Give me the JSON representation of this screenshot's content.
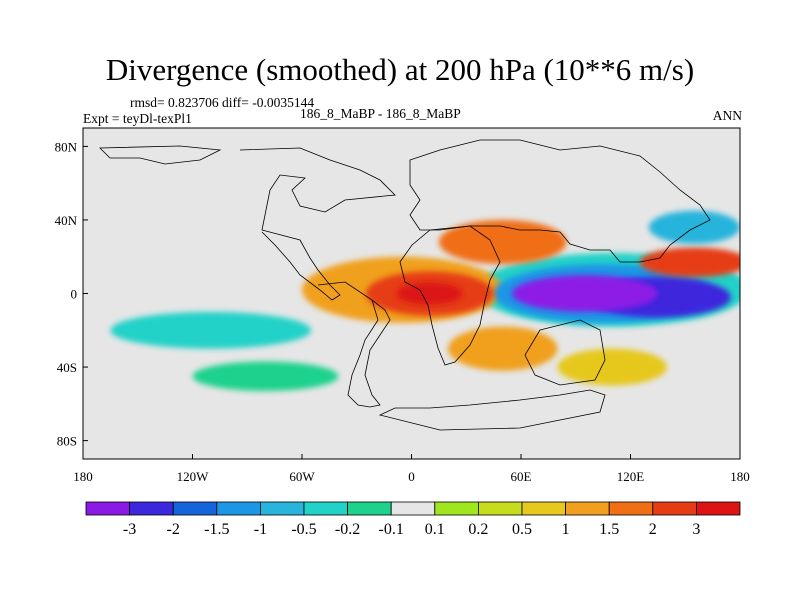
{
  "header": {
    "title": "Divergence (smoothed) at 200 hPa (10**6 m/s)",
    "stats": "rmsd= 0.823706 diff= -0.0035144",
    "experiment": "Expt = teyDl-texPl1",
    "case": "186_8_MaBP - 186_8_MaBP",
    "season": "ANN"
  },
  "chart_data": {
    "type": "heatmap",
    "title": "Divergence (smoothed) at 200 hPa (10**6 m/s)",
    "projection": "cylindrical equidistant",
    "x_range": [
      -180,
      180
    ],
    "y_range": [
      -90,
      90
    ],
    "x_ticks": [
      {
        "value": -180,
        "label": "180"
      },
      {
        "value": -120,
        "label": "120W"
      },
      {
        "value": -60,
        "label": "60W"
      },
      {
        "value": 0,
        "label": "0"
      },
      {
        "value": 60,
        "label": "60E"
      },
      {
        "value": 120,
        "label": "120E"
      },
      {
        "value": 180,
        "label": "180"
      }
    ],
    "y_ticks": [
      {
        "value": 80,
        "label": "80N"
      },
      {
        "value": 40,
        "label": "40N"
      },
      {
        "value": 0,
        "label": "0"
      },
      {
        "value": -40,
        "label": "40S"
      },
      {
        "value": -80,
        "label": "80S"
      }
    ],
    "colorbar": {
      "colors": [
        "#8c1ae6",
        "#3c28dc",
        "#1464dc",
        "#1e96e6",
        "#28b4dc",
        "#20d2c8",
        "#1ed28c",
        "#e6e6e6",
        "#a0e61e",
        "#c8dc1e",
        "#e6c81e",
        "#f0a01e",
        "#f06e14",
        "#e63c14",
        "#dc1414"
      ],
      "labels": [
        "-3",
        "-2",
        "-1.5",
        "-1",
        "-0.5",
        "-0.2",
        "-0.1",
        "0.1",
        "0.2",
        "0.5",
        "1",
        "1.5",
        "2",
        "3"
      ]
    },
    "features": [
      {
        "name": "equatorial-convergence-60E-130E",
        "lon": 95,
        "lat": 0,
        "rx": 40,
        "ry": 10,
        "level": 0
      },
      {
        "name": "convergence-east-pacific",
        "lon": 135,
        "lat": -2,
        "rx": 40,
        "ry": 11,
        "level": 1
      },
      {
        "name": "convergence-eq-belt",
        "lon": 105,
        "lat": 0,
        "rx": 60,
        "ry": 16,
        "level": 3
      },
      {
        "name": "convergence-outer",
        "lon": 110,
        "lat": 2,
        "rx": 75,
        "ry": 20,
        "level": 5
      },
      {
        "name": "convergence-40N-160E",
        "lon": 155,
        "lat": 36,
        "rx": 25,
        "ry": 9,
        "level": 4
      },
      {
        "name": "divergence-africa-core",
        "lon": 10,
        "lat": 0,
        "rx": 18,
        "ry": 6,
        "level": 14
      },
      {
        "name": "divergence-africa",
        "lon": 10,
        "lat": 0,
        "rx": 35,
        "ry": 12,
        "level": 13
      },
      {
        "name": "divergence-atlantic",
        "lon": -5,
        "lat": 2,
        "rx": 55,
        "ry": 18,
        "level": 11
      },
      {
        "name": "divergence-asia-25N",
        "lon": 50,
        "lat": 28,
        "rx": 35,
        "ry": 12,
        "level": 12
      },
      {
        "name": "divergence-east-pacific-20N",
        "lon": 155,
        "lat": 17,
        "rx": 30,
        "ry": 8,
        "level": 13
      },
      {
        "name": "divergence-south-america",
        "lon": 50,
        "lat": -30,
        "rx": 30,
        "ry": 12,
        "level": 11
      },
      {
        "name": "divergence-south-indian",
        "lon": 110,
        "lat": -40,
        "rx": 30,
        "ry": 10,
        "level": 10
      },
      {
        "name": "convergence-south-pacific",
        "lon": -110,
        "lat": -20,
        "rx": 55,
        "ry": 10,
        "level": 5
      },
      {
        "name": "convergence-40S-atlantic",
        "lon": -80,
        "lat": -45,
        "rx": 40,
        "ry": 8,
        "level": 6
      }
    ]
  }
}
